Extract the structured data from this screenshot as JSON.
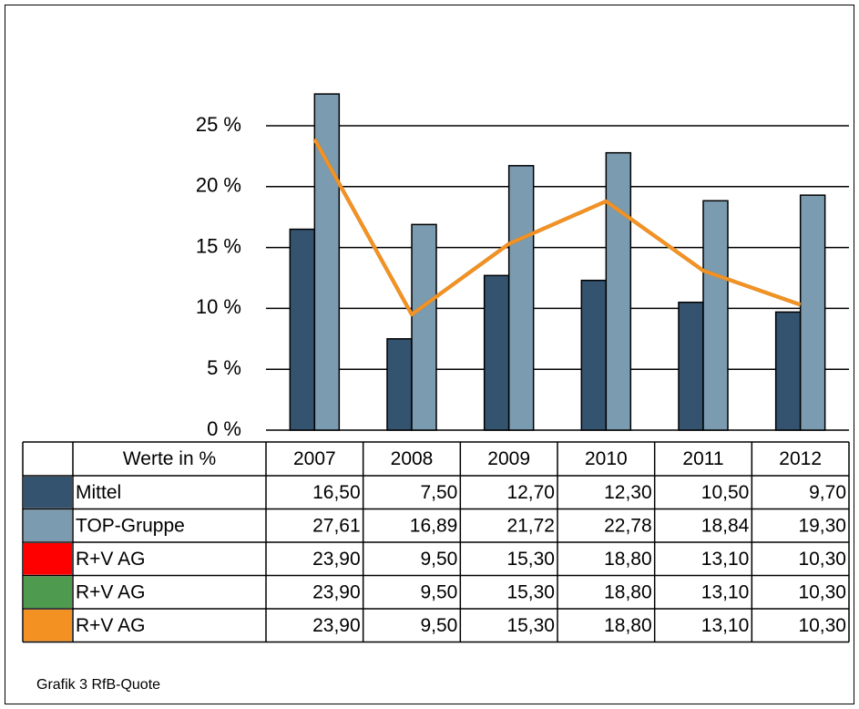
{
  "chart_data": {
    "type": "bar",
    "caption": "Grafik 3 RfB-Quote",
    "table_header": "Werte in %",
    "categories": [
      "2007",
      "2008",
      "2009",
      "2010",
      "2011",
      "2012"
    ],
    "series": [
      {
        "name": "Mittel",
        "type": "bar",
        "color": "#34536f",
        "values": [
          16.5,
          7.5,
          12.7,
          12.3,
          10.5,
          9.7
        ],
        "value_labels": [
          "16,50",
          "7,50",
          "12,70",
          "12,30",
          "10,50",
          "9,70"
        ]
      },
      {
        "name": "TOP-Gruppe",
        "type": "bar",
        "color": "#7b9bb0",
        "values": [
          27.61,
          16.89,
          21.72,
          22.78,
          18.84,
          19.3
        ],
        "value_labels": [
          "27,61",
          "16,89",
          "21,72",
          "22,78",
          "18,84",
          "19,30"
        ]
      },
      {
        "name": "R+V AG",
        "type": "line",
        "color": "#ff0000",
        "values": [
          23.9,
          9.5,
          15.3,
          18.8,
          13.1,
          10.3
        ],
        "value_labels": [
          "23,90",
          "9,50",
          "15,30",
          "18,80",
          "13,10",
          "10,30"
        ]
      },
      {
        "name": "R+V AG",
        "type": "line",
        "color": "#4e9a4e",
        "values": [
          23.9,
          9.5,
          15.3,
          18.8,
          13.1,
          10.3
        ],
        "value_labels": [
          "23,90",
          "9,50",
          "15,30",
          "18,80",
          "13,10",
          "10,30"
        ]
      },
      {
        "name": "R+V AG",
        "type": "line",
        "color": "#f39223",
        "values": [
          23.9,
          9.5,
          15.3,
          18.8,
          13.1,
          10.3
        ],
        "value_labels": [
          "23,90",
          "9,50",
          "15,30",
          "18,80",
          "13,10",
          "10,30"
        ]
      }
    ],
    "ylim": [
      0,
      25
    ],
    "yticks": [
      {
        "value": 0,
        "label": "0 %"
      },
      {
        "value": 5,
        "label": "5 %"
      },
      {
        "value": 10,
        "label": "10 %"
      },
      {
        "value": 15,
        "label": "15 %"
      },
      {
        "value": 20,
        "label": "20 %"
      },
      {
        "value": 25,
        "label": "25 %"
      }
    ],
    "grid": true
  }
}
